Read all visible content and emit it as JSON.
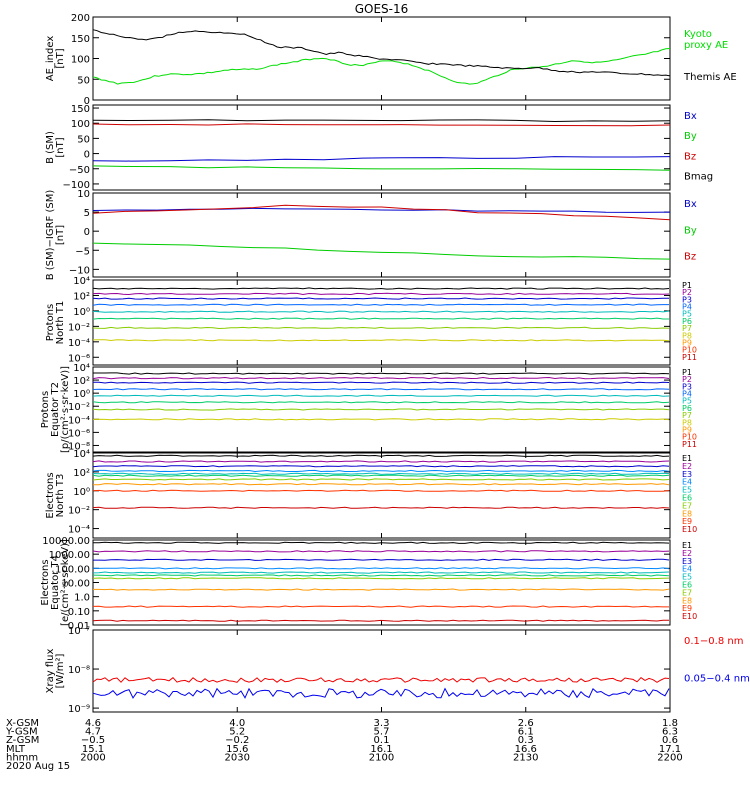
{
  "title": "GOES-16",
  "chart_data": [
    {
      "type": "line",
      "ylabel": [
        "AE_index",
        "[nT]"
      ],
      "ylim": [
        0,
        200
      ],
      "yticks": [
        0,
        50,
        100,
        150,
        200
      ],
      "ytick_labels": [
        "0",
        "50",
        "100",
        "150",
        "200"
      ],
      "series": [
        {
          "name": "Kyoto proxy AE",
          "label": [
            "Kyoto",
            "proxy AE"
          ],
          "color": "#00dd00",
          "values": [
            55,
            47,
            40,
            42,
            48,
            57,
            62,
            62,
            62,
            64,
            68,
            72,
            73,
            74,
            78,
            85,
            90,
            95,
            100,
            101,
            92,
            85,
            83,
            90,
            96,
            91,
            84,
            74,
            62,
            50,
            40,
            38,
            48,
            60,
            72,
            77,
            78,
            82,
            88,
            95,
            93,
            90,
            93,
            98,
            105,
            110,
            117,
            124
          ]
        },
        {
          "name": "Themis AE",
          "label": [
            "Themis AE"
          ],
          "color": "#000000",
          "values": [
            168,
            160,
            155,
            150,
            145,
            148,
            155,
            162,
            166,
            165,
            163,
            162,
            160,
            152,
            140,
            128,
            126,
            125,
            118,
            110,
            114,
            109,
            105,
            100,
            98,
            96,
            92,
            88,
            87,
            86,
            83,
            82,
            80,
            78,
            76,
            76,
            78,
            74,
            70,
            68,
            67,
            68,
            66,
            64,
            63,
            62,
            60,
            58
          ]
        }
      ]
    },
    {
      "type": "line",
      "ylabel": [
        "B (SM)",
        "[nT]"
      ],
      "ylim": [
        -120,
        160
      ],
      "yticks": [
        -100,
        -50,
        0,
        50,
        100,
        150
      ],
      "ytick_labels": [
        "−100",
        "−50",
        "0",
        "50",
        "100",
        "150"
      ],
      "series": [
        {
          "name": "Bx",
          "label": [
            "Bx"
          ],
          "color": "#0000cc",
          "values": [
            -26,
            -23,
            -18,
            -15,
            -12,
            -10
          ]
        },
        {
          "name": "By",
          "label": [
            "By"
          ],
          "color": "#00cc00",
          "values": [
            -42,
            -45,
            -48,
            -51,
            -53,
            -55
          ]
        },
        {
          "name": "Bz",
          "label": [
            "Bz"
          ],
          "color": "#cc0000",
          "values": [
            96,
            96,
            95,
            95,
            94,
            94
          ]
        },
        {
          "name": "Bmag",
          "label": [
            "Bmag"
          ],
          "color": "#000000",
          "values": [
            108,
            110,
            110,
            109,
            108,
            108
          ]
        }
      ]
    },
    {
      "type": "line",
      "ylabel": [
        "B (SM)−IGRF (SM)",
        "[nT]"
      ],
      "ylim": [
        -12,
        10
      ],
      "yticks": [
        -10,
        -5,
        0,
        5,
        10
      ],
      "ytick_labels": [
        "−10",
        "−5",
        "0",
        "5",
        "10"
      ],
      "series": [
        {
          "name": "Bx",
          "label": [
            "Bx"
          ],
          "color": "#0000cc",
          "values": [
            5.5,
            5.8,
            6.0,
            5.7,
            5.4,
            5.2,
            5.0
          ]
        },
        {
          "name": "By",
          "label": [
            "By"
          ],
          "color": "#00cc00",
          "values": [
            -3.0,
            -3.6,
            -4.6,
            -5.5,
            -6.3,
            -6.8,
            -7.3
          ]
        },
        {
          "name": "Bz",
          "label": [
            "Bz"
          ],
          "color": "#cc0000",
          "values": [
            4.8,
            5.5,
            6.6,
            6.3,
            5.0,
            4.2,
            3.0
          ]
        }
      ]
    },
    {
      "type": "line",
      "yscale": "log",
      "ylabel": [
        "Protons",
        "North T1"
      ],
      "ylim_log10": [
        -7,
        4
      ],
      "yticks_log10": [
        -6,
        -4,
        -2,
        0,
        2,
        4
      ],
      "ytick_labels": [
        "10⁻⁶",
        "10⁻⁴",
        "10⁻²",
        "10⁰",
        "10²",
        "10⁴"
      ],
      "series": [
        {
          "name": "P1",
          "color": "#000000",
          "log10": 2.9
        },
        {
          "name": "P2",
          "color": "#990099",
          "log10": 2.2
        },
        {
          "name": "P3",
          "color": "#0000cc",
          "log10": 1.6
        },
        {
          "name": "P4",
          "color": "#0066ff",
          "log10": 0.8
        },
        {
          "name": "P5",
          "color": "#00bbbb",
          "log10": -0.1
        },
        {
          "name": "P6",
          "color": "#00cc66",
          "log10": -1.0
        },
        {
          "name": "P7",
          "color": "#88cc00",
          "log10": -2.2
        },
        {
          "name": "P8",
          "color": "#cccc00",
          "log10": -3.8
        },
        {
          "name": "P9",
          "color": "#ff9900",
          "log10": null
        },
        {
          "name": "P10",
          "color": "#ff3300",
          "log10": null
        },
        {
          "name": "P11",
          "color": "#cc0000",
          "log10": null
        }
      ]
    },
    {
      "type": "line",
      "yscale": "log",
      "ylabel": [
        "Protons",
        "Equator T2",
        "[p/(cm²·s·sr·keV)]"
      ],
      "ylim_log10": [
        -9,
        4
      ],
      "yticks_log10": [
        -8,
        -6,
        -4,
        -2,
        0,
        2,
        4
      ],
      "ytick_labels": [
        "10⁻⁸",
        "10⁻⁶",
        "10⁻⁴",
        "10⁻²",
        "10⁰",
        "10²",
        "10⁴"
      ],
      "series": [
        {
          "name": "P1",
          "color": "#000000",
          "log10": 3.0
        },
        {
          "name": "P2",
          "color": "#990099",
          "log10": 2.3
        },
        {
          "name": "P3",
          "color": "#0000cc",
          "log10": 1.6
        },
        {
          "name": "P4",
          "color": "#0066ff",
          "log10": 0.6
        },
        {
          "name": "P5",
          "color": "#00bbbb",
          "log10": -0.4
        },
        {
          "name": "P6",
          "color": "#00cc66",
          "log10": -1.4
        },
        {
          "name": "P7",
          "color": "#88cc00",
          "log10": -2.5
        },
        {
          "name": "P8",
          "color": "#cccc00",
          "log10": -4.0
        },
        {
          "name": "P9",
          "color": "#ff9900",
          "log10": null
        },
        {
          "name": "P10",
          "color": "#ff3300",
          "log10": null
        },
        {
          "name": "P11",
          "color": "#cc0000",
          "log10": null
        }
      ]
    },
    {
      "type": "line",
      "yscale": "log",
      "ylabel": [
        "Electrons",
        "North T3"
      ],
      "ylim_log10": [
        -5,
        4
      ],
      "yticks_log10": [
        -4,
        -2,
        0,
        2,
        4
      ],
      "ytick_labels": [
        "10⁻⁴",
        "10⁻²",
        "10⁰",
        "10²",
        "10⁴"
      ],
      "series": [
        {
          "name": "E1",
          "color": "#000000",
          "log10": 3.7
        },
        {
          "name": "E2",
          "color": "#990099",
          "log10": 3.1
        },
        {
          "name": "E3",
          "color": "#0000cc",
          "log10": 2.6
        },
        {
          "name": "E4",
          "color": "#0088ff",
          "log10": 2.1
        },
        {
          "name": "E5",
          "color": "#00bbbb",
          "log10": 1.8
        },
        {
          "name": "E6",
          "color": "#00cc66",
          "log10": 1.6
        },
        {
          "name": "E7",
          "color": "#88cc00",
          "log10": 1.2
        },
        {
          "name": "E8",
          "color": "#ff9900",
          "log10": 0.7
        },
        {
          "name": "E9",
          "color": "#ff3300",
          "log10": 0.0
        },
        {
          "name": "E10",
          "color": "#cc0000",
          "log10": -1.8
        }
      ]
    },
    {
      "type": "line",
      "yscale": "log",
      "ylabel": [
        "Electrons",
        "Equator T4",
        "[e/(cm²·s·sr·keV)]"
      ],
      "ylim_log10": [
        -2,
        4
      ],
      "yticks_log10": [
        -2,
        -1,
        0,
        1,
        2,
        3,
        4
      ],
      "ytick_labels": [
        "0.01",
        "0.10",
        "1.0",
        "10.00",
        "100.00",
        "1000.00",
        "10000.00"
      ],
      "series": [
        {
          "name": "E1",
          "color": "#000000",
          "log10": 3.8
        },
        {
          "name": "E2",
          "color": "#990099",
          "log10": 3.2
        },
        {
          "name": "E3",
          "color": "#0000cc",
          "log10": 2.6
        },
        {
          "name": "E4",
          "color": "#0088ff",
          "log10": 2.0
        },
        {
          "name": "E5",
          "color": "#00bbbb",
          "log10": 1.7
        },
        {
          "name": "E6",
          "color": "#00cc66",
          "log10": 1.5
        },
        {
          "name": "E7",
          "color": "#88cc00",
          "log10": 1.3
        },
        {
          "name": "E8",
          "color": "#ff9900",
          "log10": 0.5
        },
        {
          "name": "E9",
          "color": "#ff3300",
          "log10": -0.7
        },
        {
          "name": "E10",
          "color": "#cc0000",
          "log10": -1.7
        }
      ]
    },
    {
      "type": "line",
      "yscale": "log",
      "ylabel": [
        "Xray flux",
        "[W/m²]"
      ],
      "ylim_log10": [
        -9.1,
        -7
      ],
      "yticks_log10": [
        -9,
        -8,
        -7
      ],
      "ytick_labels": [
        "10⁻⁹",
        "10⁻⁸",
        "10⁻⁷"
      ],
      "series": [
        {
          "name": "0.1−0.8 nm",
          "label": [
            "0.1−0.8 nm"
          ],
          "color": "#ee0000",
          "mean_log10": -8.28
        },
        {
          "name": "0.05−0.4 nm",
          "label": [
            "0.05−0.4 nm"
          ],
          "color": "#0000ee",
          "mean_log10": -8.62
        }
      ]
    }
  ],
  "x_axis": {
    "rows": [
      {
        "name": "X-GSM",
        "values": [
          "4.6",
          "4.0",
          "3.3",
          "2.6",
          "1.8"
        ]
      },
      {
        "name": "Y-GSM",
        "values": [
          "4.7",
          "5.2",
          "5.7",
          "6.1",
          "6.3"
        ]
      },
      {
        "name": "Z-GSM",
        "values": [
          "−0.5",
          "−0.2",
          "0.1",
          "0.3",
          "0.6"
        ]
      },
      {
        "name": "MLT",
        "values": [
          "15.1",
          "15.6",
          "16.1",
          "16.6",
          "17.1"
        ]
      },
      {
        "name": "hhmm",
        "values": [
          "2000",
          "2030",
          "2100",
          "2130",
          "2200"
        ]
      }
    ],
    "date": "2020 Aug 15"
  }
}
